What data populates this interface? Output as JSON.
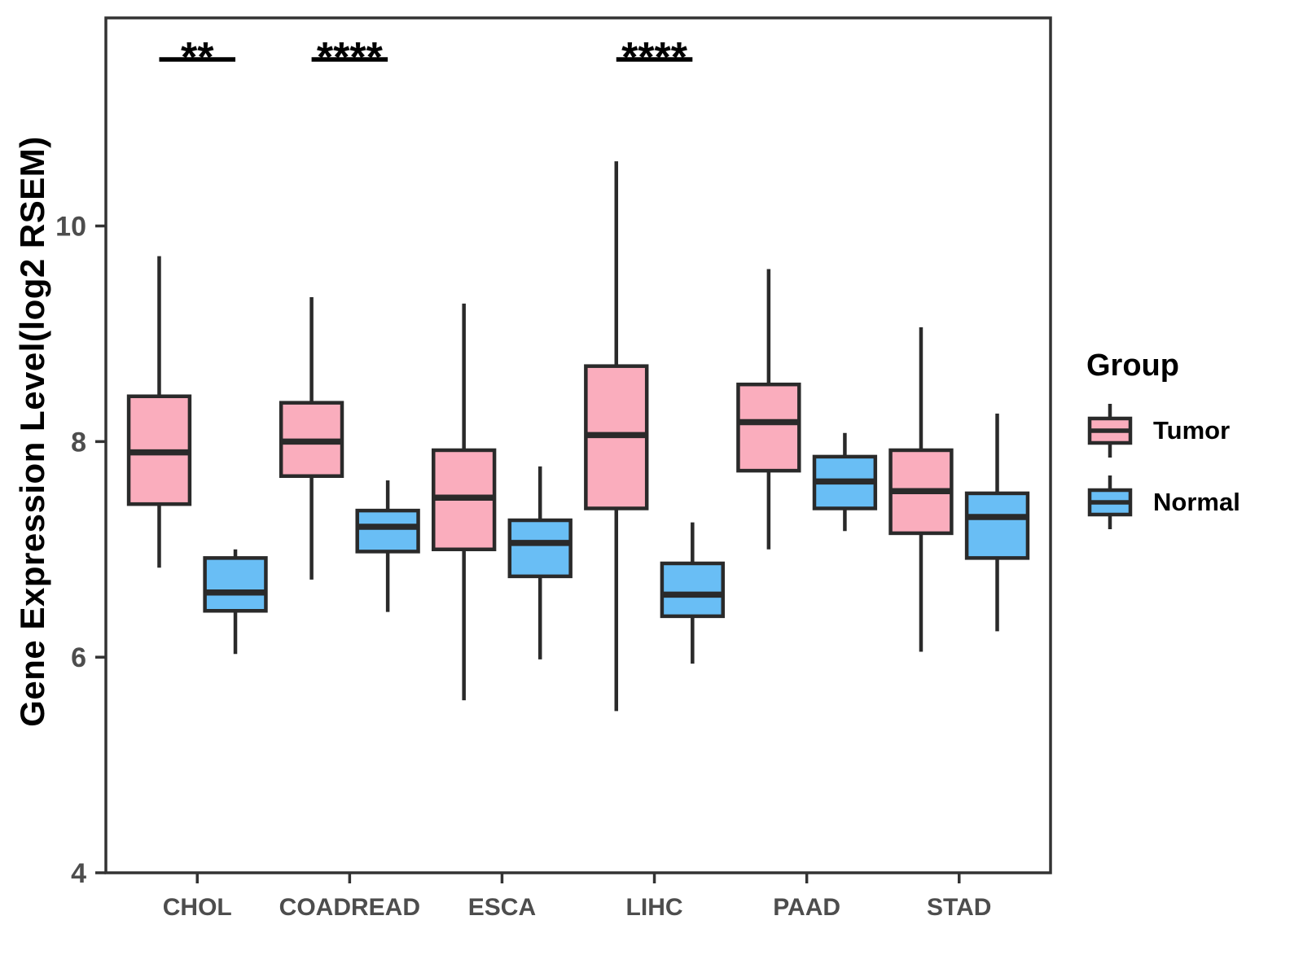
{
  "ylabel": "Gene Expression Level(log2 RSEM)",
  "legend": {
    "title": "Group",
    "items": [
      {
        "label": "Tumor",
        "color": "#FAADBD"
      },
      {
        "label": "Normal",
        "color": "#69BEF5"
      }
    ]
  },
  "colors": {
    "box_stroke": "#2a2a2a",
    "axis_stroke": "#333333",
    "tick_label": "#4d4d4d",
    "annotation": "#000000"
  },
  "chart_data": {
    "type": "boxplot",
    "title": "",
    "xlabel": "",
    "ylabel": "Gene Expression Level(log2 RSEM)",
    "categories": [
      "CHOL",
      "COADREAD",
      "ESCA",
      "LIHC",
      "PAAD",
      "STAD"
    ],
    "y_ticks": [
      4,
      6,
      8,
      10
    ],
    "ylim": [
      4,
      11.93
    ],
    "grid": false,
    "legend_position": "right",
    "series": [
      {
        "name": "Tumor",
        "color": "#FAADBD",
        "boxes": [
          {
            "category": "CHOL",
            "min": 6.83,
            "q1": 7.42,
            "median": 7.9,
            "q3": 8.42,
            "max": 9.72
          },
          {
            "category": "COADREAD",
            "min": 6.72,
            "q1": 7.68,
            "median": 8.0,
            "q3": 8.36,
            "max": 9.34
          },
          {
            "category": "ESCA",
            "min": 5.6,
            "q1": 7.0,
            "median": 7.48,
            "q3": 7.92,
            "max": 9.28
          },
          {
            "category": "LIHC",
            "min": 5.5,
            "q1": 7.38,
            "median": 8.06,
            "q3": 8.7,
            "max": 10.6
          },
          {
            "category": "PAAD",
            "min": 7.0,
            "q1": 7.73,
            "median": 8.18,
            "q3": 8.53,
            "max": 9.6
          },
          {
            "category": "STAD",
            "min": 6.05,
            "q1": 7.15,
            "median": 7.54,
            "q3": 7.92,
            "max": 9.06
          }
        ]
      },
      {
        "name": "Normal",
        "color": "#69BEF5",
        "boxes": [
          {
            "category": "CHOL",
            "min": 6.03,
            "q1": 6.43,
            "median": 6.6,
            "q3": 6.92,
            "max": 7.0
          },
          {
            "category": "COADREAD",
            "min": 6.42,
            "q1": 6.98,
            "median": 7.21,
            "q3": 7.36,
            "max": 7.64
          },
          {
            "category": "ESCA",
            "min": 5.98,
            "q1": 6.75,
            "median": 7.06,
            "q3": 7.27,
            "max": 7.77
          },
          {
            "category": "LIHC",
            "min": 5.94,
            "q1": 6.38,
            "median": 6.58,
            "q3": 6.87,
            "max": 7.25
          },
          {
            "category": "PAAD",
            "min": 7.17,
            "q1": 7.38,
            "median": 7.63,
            "q3": 7.86,
            "max": 8.08
          },
          {
            "category": "STAD",
            "min": 6.24,
            "q1": 6.92,
            "median": 7.3,
            "q3": 7.52,
            "max": 8.26
          }
        ]
      }
    ],
    "significance": [
      {
        "category": "CHOL",
        "label": "**"
      },
      {
        "category": "COADREAD",
        "label": "****"
      },
      {
        "category": "LIHC",
        "label": "****"
      }
    ]
  }
}
